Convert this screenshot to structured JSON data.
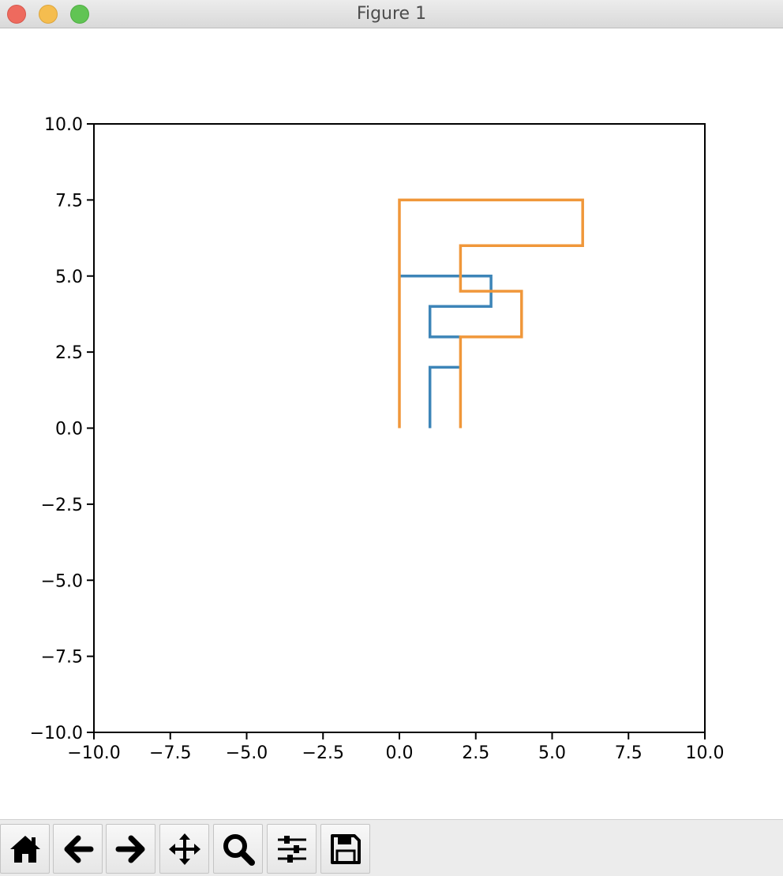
{
  "window": {
    "title": "Figure 1"
  },
  "toolbar": {
    "buttons": [
      {
        "name": "home-button",
        "icon": "home-icon"
      },
      {
        "name": "back-button",
        "icon": "arrow-left-icon"
      },
      {
        "name": "forward-button",
        "icon": "arrow-right-icon"
      },
      {
        "name": "pan-button",
        "icon": "move-icon"
      },
      {
        "name": "zoom-button",
        "icon": "magnifier-icon"
      },
      {
        "name": "configure-subplots-button",
        "icon": "sliders-icon"
      },
      {
        "name": "save-button",
        "icon": "floppy-disk-icon"
      }
    ]
  },
  "chart_data": {
    "type": "line",
    "title": "",
    "xlabel": "",
    "ylabel": "",
    "xlim": [
      -10,
      10
    ],
    "ylim": [
      -10,
      10
    ],
    "xticks": [
      "−10.0",
      "−7.5",
      "−5.0",
      "−2.5",
      "0.0",
      "2.5",
      "5.0",
      "7.5",
      "10.0"
    ],
    "yticks": [
      "−10.0",
      "−7.5",
      "−5.0",
      "−2.5",
      "0.0",
      "2.5",
      "5.0",
      "7.5",
      "10.0"
    ],
    "xtick_values": [
      -10,
      -7.5,
      -5,
      -2.5,
      0,
      2.5,
      5,
      7.5,
      10
    ],
    "ytick_values": [
      -10,
      -7.5,
      -5,
      -2.5,
      0,
      2.5,
      5,
      7.5,
      10
    ],
    "grid": false,
    "series": [
      {
        "color": "#3d85b8",
        "x": [
          1,
          1,
          2,
          null,
          2,
          1,
          1,
          3,
          3,
          0
        ],
        "y": [
          0,
          2,
          2,
          null,
          3,
          3,
          4,
          4,
          5,
          5
        ]
      },
      {
        "color": "#f0973a",
        "x": [
          0,
          0,
          6,
          6,
          2,
          2,
          4,
          4,
          2,
          2
        ],
        "y": [
          0,
          7.5,
          7.5,
          6,
          6,
          4.5,
          4.5,
          3,
          3,
          0
        ]
      }
    ]
  }
}
